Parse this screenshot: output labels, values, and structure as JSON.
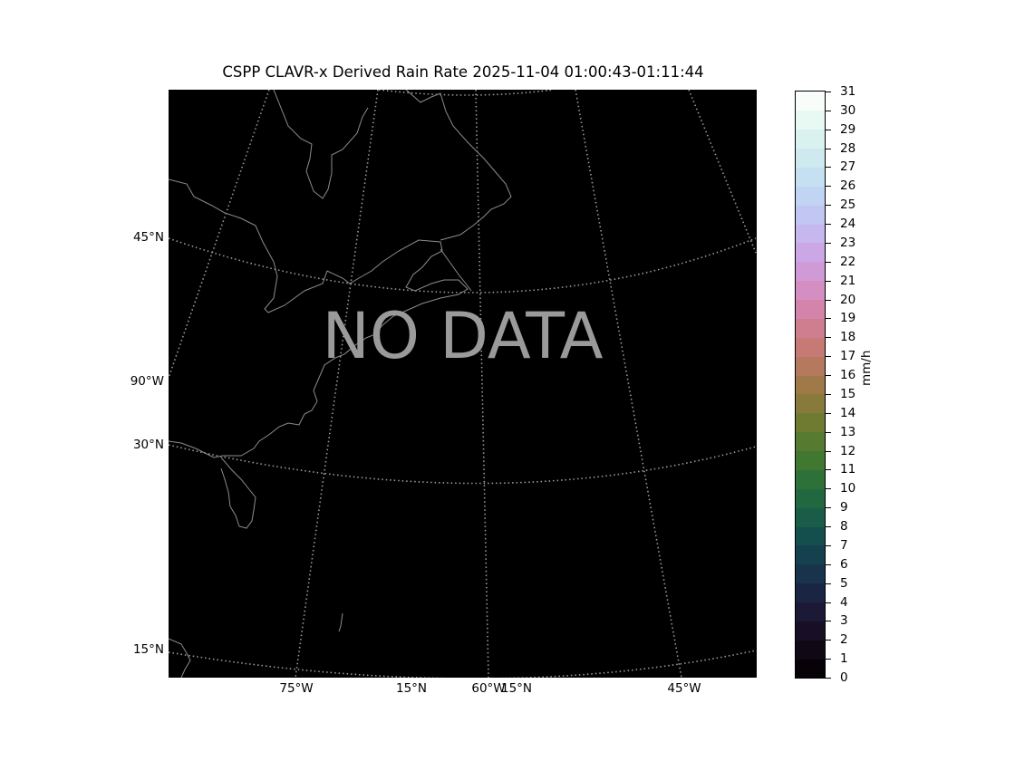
{
  "title": "CSPP CLAVR-x Derived Rain Rate 2025-11-04 01:00:43-01:11:44",
  "overlay_text": "NO DATA",
  "map": {
    "background": "#000000",
    "coastline_color": "#8c8c8c",
    "gridline_color": "#9a9a9a",
    "left_labels": [
      "45°N",
      "90°W",
      "30°N",
      "15°N"
    ],
    "bottom_labels": [
      "75°W",
      "15°N",
      "60°W",
      "15°N",
      "45°W"
    ]
  },
  "colorbar": {
    "colormap": "cubehelix",
    "unit_label": "mm/h",
    "min": 0,
    "max": 31,
    "ticks": [
      "0",
      "1",
      "2",
      "3",
      "4",
      "5",
      "6",
      "7",
      "8",
      "9",
      "10",
      "11",
      "12",
      "13",
      "14",
      "15",
      "16",
      "17",
      "18",
      "19",
      "20",
      "21",
      "22",
      "23",
      "24",
      "25",
      "26",
      "27",
      "28",
      "29",
      "30",
      "31"
    ]
  }
}
